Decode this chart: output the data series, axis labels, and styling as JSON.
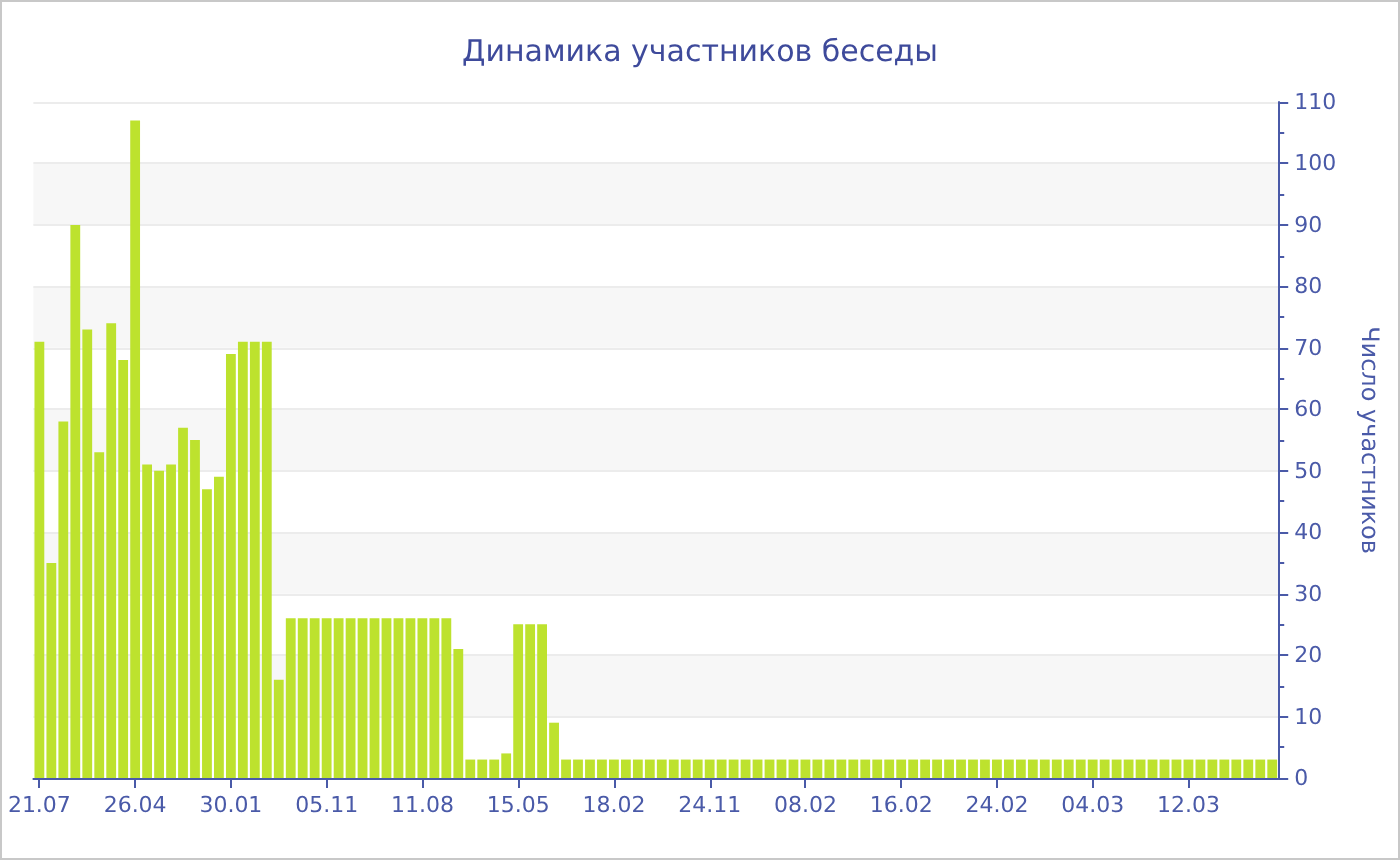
{
  "chart_data": {
    "type": "bar",
    "title": "Динамика участников беседы",
    "ylabel": "Число участников",
    "categories": [
      "21.07",
      null,
      null,
      null,
      null,
      null,
      null,
      null,
      "26.04",
      null,
      null,
      null,
      null,
      null,
      null,
      null,
      "30.01",
      null,
      null,
      null,
      null,
      null,
      null,
      null,
      "05.11",
      null,
      null,
      null,
      null,
      null,
      null,
      null,
      "11.08",
      null,
      null,
      null,
      null,
      null,
      null,
      null,
      "15.05",
      null,
      null,
      null,
      null,
      null,
      null,
      null,
      "18.02",
      null,
      null,
      null,
      null,
      null,
      null,
      null,
      "24.11",
      null,
      null,
      null,
      null,
      null,
      null,
      null,
      "08.02",
      null,
      null,
      null,
      null,
      null,
      null,
      null,
      "16.02",
      null,
      null,
      null,
      null,
      null,
      null,
      null,
      "24.02",
      null,
      null,
      null,
      null,
      null,
      null,
      null,
      "04.03",
      null,
      null,
      null,
      null,
      null,
      null,
      null,
      "12.03",
      null,
      null,
      null,
      null,
      null,
      null,
      null
    ],
    "values": [
      71,
      35,
      58,
      90,
      73,
      53,
      74,
      68,
      107,
      51,
      50,
      51,
      57,
      55,
      47,
      49,
      69,
      71,
      71,
      71,
      16,
      26,
      26,
      26,
      26,
      26,
      26,
      26,
      26,
      26,
      26,
      26,
      26,
      26,
      26,
      21,
      3,
      3,
      3,
      4,
      25,
      25,
      25,
      9,
      3,
      3,
      3,
      3,
      3,
      3,
      3,
      3,
      3,
      3,
      3,
      3,
      3,
      3,
      3,
      3,
      3,
      3,
      3,
      3,
      3,
      3,
      3,
      3,
      3,
      3,
      3,
      3,
      3,
      3,
      3,
      3,
      3,
      3,
      3,
      3,
      3,
      3,
      3,
      3,
      3,
      3,
      3,
      3,
      3,
      3,
      3,
      3,
      3,
      3,
      3,
      3,
      3,
      3,
      3,
      3,
      3,
      3,
      3,
      3
    ],
    "color": "#bde22e",
    "ylim": [
      0,
      110
    ],
    "yticks": [
      0,
      10,
      20,
      30,
      40,
      50,
      60,
      70,
      80,
      90,
      100,
      110
    ],
    "grid": "y"
  }
}
